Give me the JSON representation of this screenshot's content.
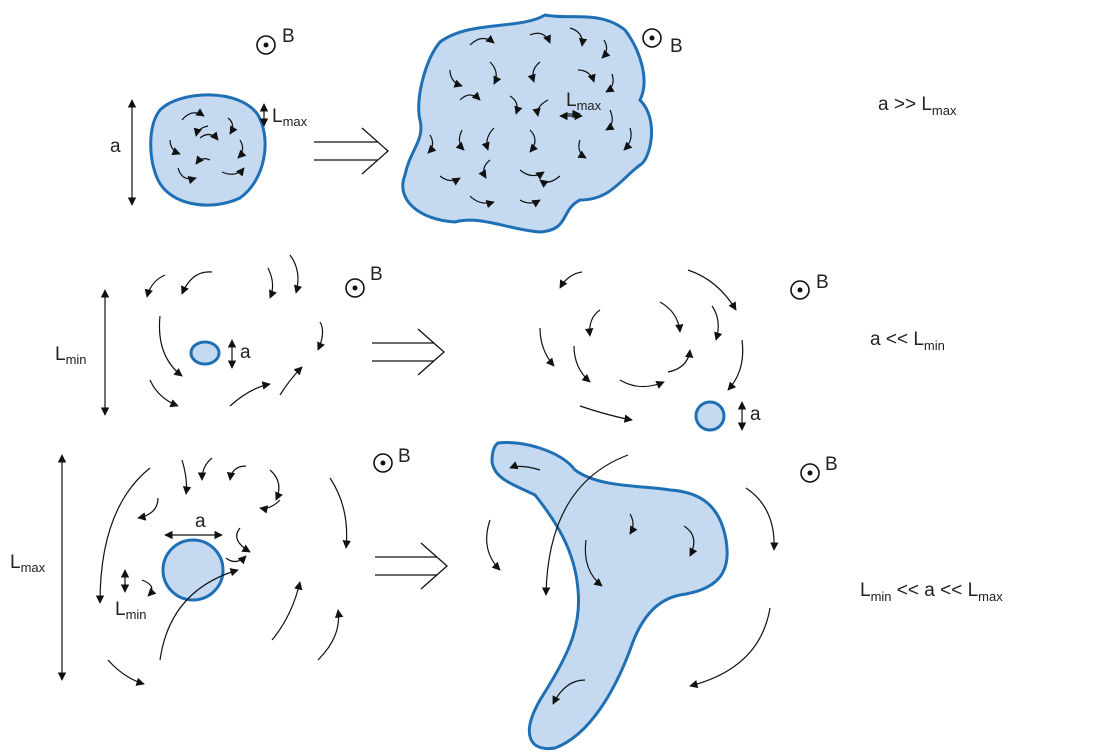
{
  "rows": [
    {
      "before": {
        "field": "B",
        "size": "a",
        "scale": [
          "L",
          "max"
        ]
      },
      "after": {
        "field": "B",
        "scale": [
          "L",
          "max"
        ]
      },
      "condition": [
        "a >> L",
        "max"
      ]
    },
    {
      "before": {
        "field": "B",
        "size": "a",
        "scale": [
          "L",
          "min"
        ]
      },
      "after": {
        "field": "B",
        "size": "a"
      },
      "condition": [
        "a << L",
        "min"
      ]
    },
    {
      "before": {
        "field": "B",
        "size": "a",
        "scale": [
          "L",
          "max"
        ],
        "scale2": [
          "L",
          "min"
        ]
      },
      "after": {
        "field": "B"
      },
      "condition": [
        "L",
        "min",
        " << a << L",
        "max"
      ]
    }
  ]
}
